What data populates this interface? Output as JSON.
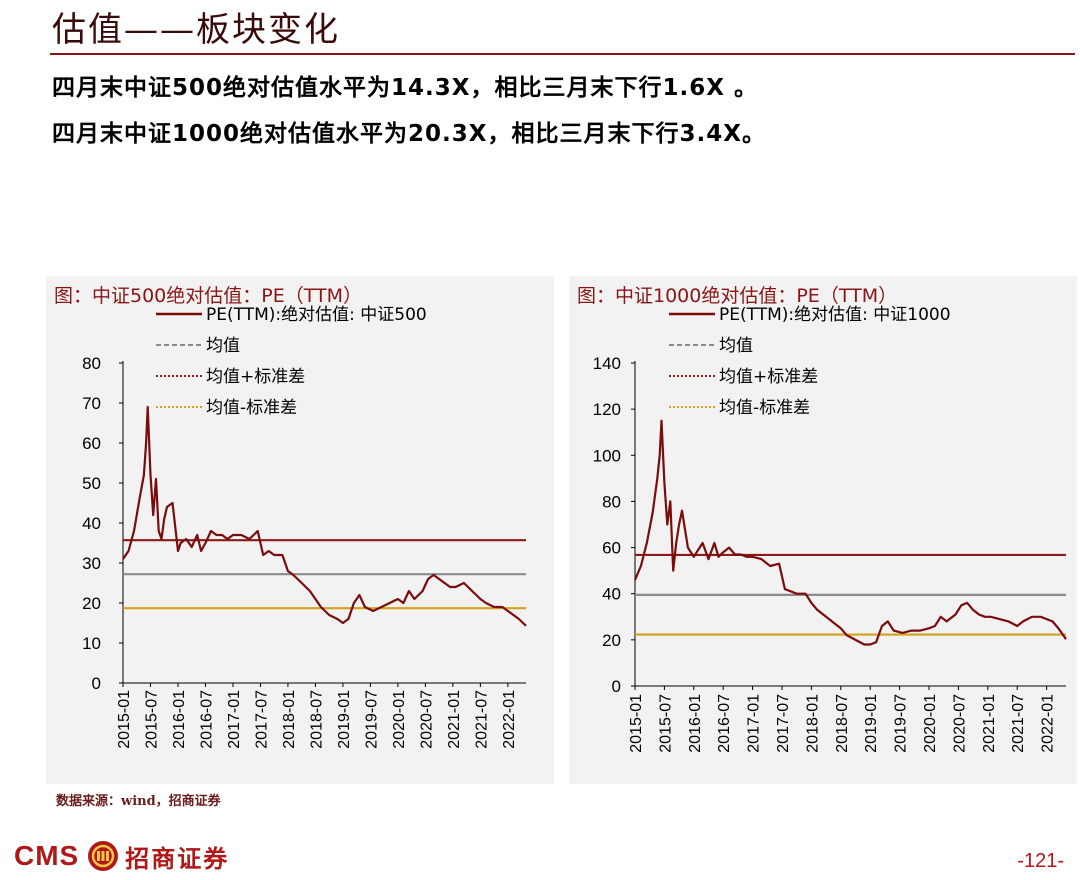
{
  "header": {
    "title": "估值——板块变化",
    "bullets": [
      "四月末中证500绝对估值水平为14.3X，相比三月末下行1.6X 。",
      "四月末中证1000绝对估值水平为20.3X，相比三月末下行3.4X。"
    ]
  },
  "colors": {
    "pe_line": "#7a0c0c",
    "mean": "#8c8c8c",
    "mean_plus_sd": "#8b1a1a",
    "mean_minus_sd": "#d4a21a",
    "accent": "#b01818"
  },
  "chart_data": [
    {
      "type": "line",
      "title": "图：中证500绝对估值：PE（TTM）",
      "legend": [
        "PE(TTM):绝对估值: 中证500",
        "均值",
        "均值+标准差",
        "均值-标准差"
      ],
      "ylim": [
        0,
        80
      ],
      "yticks": [
        0,
        10,
        20,
        30,
        40,
        50,
        60,
        70,
        80
      ],
      "xticks": [
        "2015-01",
        "2015-07",
        "2016-01",
        "2016-07",
        "2017-01",
        "2017-07",
        "2018-01",
        "2018-07",
        "2019-01",
        "2019-07",
        "2020-01",
        "2020-07",
        "2021-01",
        "2021-07",
        "2022-01"
      ],
      "x_range": [
        2015.0,
        2022.33
      ],
      "mean": 27.2,
      "mean_plus_sd": 35.7,
      "mean_minus_sd": 18.7,
      "series": {
        "name": "PE(TTM):绝对估值: 中证500",
        "x": [
          2015.0,
          2015.1,
          2015.2,
          2015.3,
          2015.38,
          2015.42,
          2015.45,
          2015.5,
          2015.55,
          2015.6,
          2015.65,
          2015.7,
          2015.75,
          2015.8,
          2015.9,
          2016.0,
          2016.05,
          2016.15,
          2016.25,
          2016.35,
          2016.42,
          2016.5,
          2016.6,
          2016.7,
          2016.8,
          2016.9,
          2017.0,
          2017.15,
          2017.3,
          2017.45,
          2017.55,
          2017.65,
          2017.75,
          2017.9,
          2018.0,
          2018.1,
          2018.25,
          2018.4,
          2018.5,
          2018.6,
          2018.75,
          2018.9,
          2019.0,
          2019.1,
          2019.2,
          2019.3,
          2019.4,
          2019.55,
          2019.7,
          2019.85,
          2020.0,
          2020.1,
          2020.2,
          2020.3,
          2020.45,
          2020.55,
          2020.65,
          2020.75,
          2020.85,
          2020.95,
          2021.05,
          2021.2,
          2021.35,
          2021.5,
          2021.6,
          2021.75,
          2021.9,
          2022.0,
          2022.1,
          2022.2,
          2022.33
        ],
        "values": [
          31,
          33,
          38,
          46,
          52,
          60,
          69,
          52,
          42,
          51,
          38,
          36,
          41,
          44,
          45,
          33,
          35,
          36,
          34,
          37,
          33,
          35,
          38,
          37,
          37,
          36,
          37,
          37,
          36,
          38,
          32,
          33,
          32,
          32,
          28,
          27,
          25,
          23,
          21,
          19,
          17,
          16,
          15,
          16,
          20,
          22,
          19,
          18,
          19,
          20,
          21,
          20,
          23,
          21,
          23,
          26,
          27,
          26,
          25,
          24,
          24,
          25,
          23,
          21,
          20,
          19,
          19,
          18,
          17,
          16,
          14.3
        ]
      }
    },
    {
      "type": "line",
      "title": "图：中证1000绝对估值：PE（TTM）",
      "legend": [
        "PE(TTM):绝对估值: 中证1000",
        "均值",
        "均值+标准差",
        "均值-标准差"
      ],
      "ylim": [
        0,
        140
      ],
      "yticks": [
        0,
        20,
        40,
        60,
        80,
        100,
        120,
        140
      ],
      "xticks": [
        "2015-01",
        "2015-07",
        "2016-01",
        "2016-07",
        "2017-01",
        "2017-07",
        "2018-01",
        "2018-07",
        "2019-01",
        "2019-07",
        "2020-01",
        "2020-07",
        "2021-01",
        "2021-07",
        "2022-01"
      ],
      "x_range": [
        2015.0,
        2022.33
      ],
      "mean": 39.5,
      "mean_plus_sd": 56.8,
      "mean_minus_sd": 22.3,
      "series": {
        "name": "PE(TTM):绝对估值: 中证1000",
        "x": [
          2015.0,
          2015.1,
          2015.2,
          2015.3,
          2015.38,
          2015.42,
          2015.45,
          2015.5,
          2015.55,
          2015.6,
          2015.65,
          2015.7,
          2015.75,
          2015.8,
          2015.9,
          2016.0,
          2016.05,
          2016.15,
          2016.25,
          2016.35,
          2016.42,
          2016.5,
          2016.6,
          2016.7,
          2016.8,
          2016.9,
          2017.0,
          2017.15,
          2017.3,
          2017.45,
          2017.55,
          2017.65,
          2017.75,
          2017.9,
          2018.0,
          2018.1,
          2018.25,
          2018.4,
          2018.5,
          2018.6,
          2018.75,
          2018.9,
          2019.0,
          2019.1,
          2019.2,
          2019.3,
          2019.4,
          2019.55,
          2019.7,
          2019.85,
          2020.0,
          2020.1,
          2020.2,
          2020.3,
          2020.45,
          2020.55,
          2020.65,
          2020.75,
          2020.85,
          2020.95,
          2021.05,
          2021.2,
          2021.35,
          2021.5,
          2021.6,
          2021.75,
          2021.9,
          2022.0,
          2022.1,
          2022.2,
          2022.33
        ],
        "values": [
          46,
          52,
          62,
          75,
          90,
          100,
          115,
          88,
          70,
          80,
          50,
          62,
          70,
          76,
          60,
          56,
          58,
          62,
          55,
          62,
          56,
          58,
          60,
          57,
          57,
          56,
          56,
          55,
          52,
          53,
          42,
          41,
          40,
          40,
          36,
          33,
          30,
          27,
          25,
          22,
          20,
          18,
          18,
          19,
          26,
          28,
          24,
          23,
          24,
          24,
          25,
          26,
          30,
          28,
          31,
          35,
          36,
          33,
          31,
          30,
          30,
          29,
          28,
          26,
          28,
          30,
          30,
          29,
          28,
          25,
          20.3
        ]
      }
    }
  ],
  "footer": {
    "source": "数据来源：wind，招商证券",
    "logo_text": "CMS",
    "logo_cn": "招商证券",
    "page_number": "-121-"
  }
}
